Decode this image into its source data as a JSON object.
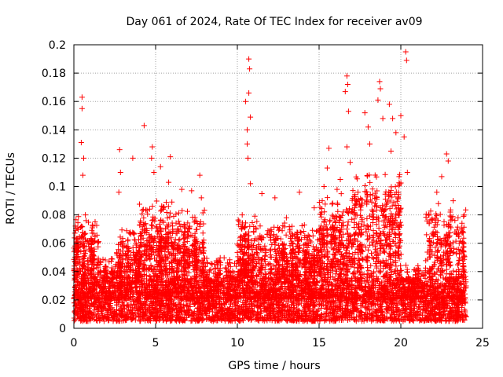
{
  "chart_data": {
    "type": "scatter",
    "title": "Day 061 of 2024, Rate Of TEC Index for receiver av09",
    "xlabel": "GPS time / hours",
    "ylabel": "ROTI / TECUs",
    "xlim": [
      0,
      25
    ],
    "ylim": [
      0,
      0.2
    ],
    "xticks": [
      0,
      5,
      10,
      15,
      20,
      25
    ],
    "yticks": [
      0,
      0.02,
      0.04,
      0.06,
      0.08,
      0.1,
      0.12,
      0.14,
      0.16,
      0.18,
      0.2
    ],
    "xtick_labels": [
      "0",
      "5",
      "10",
      "15",
      "20",
      "25"
    ],
    "ytick_labels": [
      "0",
      "0.02",
      "0.04",
      "0.06",
      "0.08",
      "0.1",
      "0.12",
      "0.14",
      "0.16",
      "0.18",
      "0.2"
    ],
    "grid": true,
    "marker": "+",
    "marker_color": "#ff0000",
    "time_range_hours": [
      0,
      24
    ],
    "baseline_band": [
      0.005,
      0.035
    ],
    "notable_points": [
      {
        "x": 0.5,
        "y": 0.163
      },
      {
        "x": 0.5,
        "y": 0.155
      },
      {
        "x": 0.45,
        "y": 0.131
      },
      {
        "x": 0.6,
        "y": 0.12
      },
      {
        "x": 0.55,
        "y": 0.108
      },
      {
        "x": 0.7,
        "y": 0.08
      },
      {
        "x": 2.8,
        "y": 0.126
      },
      {
        "x": 2.85,
        "y": 0.11
      },
      {
        "x": 2.75,
        "y": 0.096
      },
      {
        "x": 3.6,
        "y": 0.12
      },
      {
        "x": 4.3,
        "y": 0.143
      },
      {
        "x": 4.8,
        "y": 0.128
      },
      {
        "x": 4.75,
        "y": 0.12
      },
      {
        "x": 4.9,
        "y": 0.11
      },
      {
        "x": 5.3,
        "y": 0.114
      },
      {
        "x": 5.9,
        "y": 0.121
      },
      {
        "x": 5.8,
        "y": 0.103
      },
      {
        "x": 6.6,
        "y": 0.098
      },
      {
        "x": 7.2,
        "y": 0.097
      },
      {
        "x": 7.7,
        "y": 0.108
      },
      {
        "x": 7.8,
        "y": 0.092
      },
      {
        "x": 10.3,
        "y": 0.08
      },
      {
        "x": 10.5,
        "y": 0.16
      },
      {
        "x": 10.6,
        "y": 0.14
      },
      {
        "x": 10.7,
        "y": 0.19
      },
      {
        "x": 10.75,
        "y": 0.183
      },
      {
        "x": 10.7,
        "y": 0.166
      },
      {
        "x": 10.6,
        "y": 0.13
      },
      {
        "x": 10.8,
        "y": 0.149
      },
      {
        "x": 10.65,
        "y": 0.12
      },
      {
        "x": 10.8,
        "y": 0.102
      },
      {
        "x": 11.5,
        "y": 0.095
      },
      {
        "x": 12.3,
        "y": 0.092
      },
      {
        "x": 13.0,
        "y": 0.078
      },
      {
        "x": 13.8,
        "y": 0.096
      },
      {
        "x": 14.7,
        "y": 0.085
      },
      {
        "x": 15.3,
        "y": 0.1
      },
      {
        "x": 15.6,
        "y": 0.127
      },
      {
        "x": 15.5,
        "y": 0.113
      },
      {
        "x": 16.1,
        "y": 0.098
      },
      {
        "x": 16.3,
        "y": 0.105
      },
      {
        "x": 16.7,
        "y": 0.178
      },
      {
        "x": 16.75,
        "y": 0.172
      },
      {
        "x": 16.6,
        "y": 0.167
      },
      {
        "x": 16.8,
        "y": 0.153
      },
      {
        "x": 16.7,
        "y": 0.128
      },
      {
        "x": 16.9,
        "y": 0.117
      },
      {
        "x": 17.8,
        "y": 0.152
      },
      {
        "x": 18.0,
        "y": 0.142
      },
      {
        "x": 18.1,
        "y": 0.13
      },
      {
        "x": 18.7,
        "y": 0.174
      },
      {
        "x": 18.75,
        "y": 0.169
      },
      {
        "x": 18.6,
        "y": 0.161
      },
      {
        "x": 18.9,
        "y": 0.148
      },
      {
        "x": 19.3,
        "y": 0.158
      },
      {
        "x": 19.5,
        "y": 0.148
      },
      {
        "x": 19.4,
        "y": 0.125
      },
      {
        "x": 19.7,
        "y": 0.138
      },
      {
        "x": 20.0,
        "y": 0.15
      },
      {
        "x": 20.2,
        "y": 0.135
      },
      {
        "x": 20.3,
        "y": 0.195
      },
      {
        "x": 20.35,
        "y": 0.189
      },
      {
        "x": 20.4,
        "y": 0.11
      },
      {
        "x": 22.2,
        "y": 0.096
      },
      {
        "x": 22.3,
        "y": 0.088
      },
      {
        "x": 22.5,
        "y": 0.107
      },
      {
        "x": 22.8,
        "y": 0.123
      },
      {
        "x": 22.9,
        "y": 0.118
      },
      {
        "x": 23.2,
        "y": 0.09
      },
      {
        "x": 23.5,
        "y": 0.078
      }
    ],
    "activity_profile": [
      {
        "x0": 0.0,
        "x1": 1.5,
        "peak": 0.08
      },
      {
        "x0": 1.5,
        "x1": 2.6,
        "peak": 0.05
      },
      {
        "x0": 2.6,
        "x1": 4.0,
        "peak": 0.07
      },
      {
        "x0": 4.0,
        "x1": 6.0,
        "peak": 0.09
      },
      {
        "x0": 6.0,
        "x1": 8.0,
        "peak": 0.085
      },
      {
        "x0": 8.0,
        "x1": 10.0,
        "peak": 0.05
      },
      {
        "x0": 10.0,
        "x1": 11.5,
        "peak": 0.08
      },
      {
        "x0": 11.5,
        "x1": 13.5,
        "peak": 0.075
      },
      {
        "x0": 13.5,
        "x1": 15.0,
        "peak": 0.075
      },
      {
        "x0": 15.0,
        "x1": 17.0,
        "peak": 0.095
      },
      {
        "x0": 17.0,
        "x1": 20.0,
        "peak": 0.11
      },
      {
        "x0": 20.0,
        "x1": 21.5,
        "peak": 0.045
      },
      {
        "x0": 21.5,
        "x1": 24.0,
        "peak": 0.085
      }
    ]
  }
}
